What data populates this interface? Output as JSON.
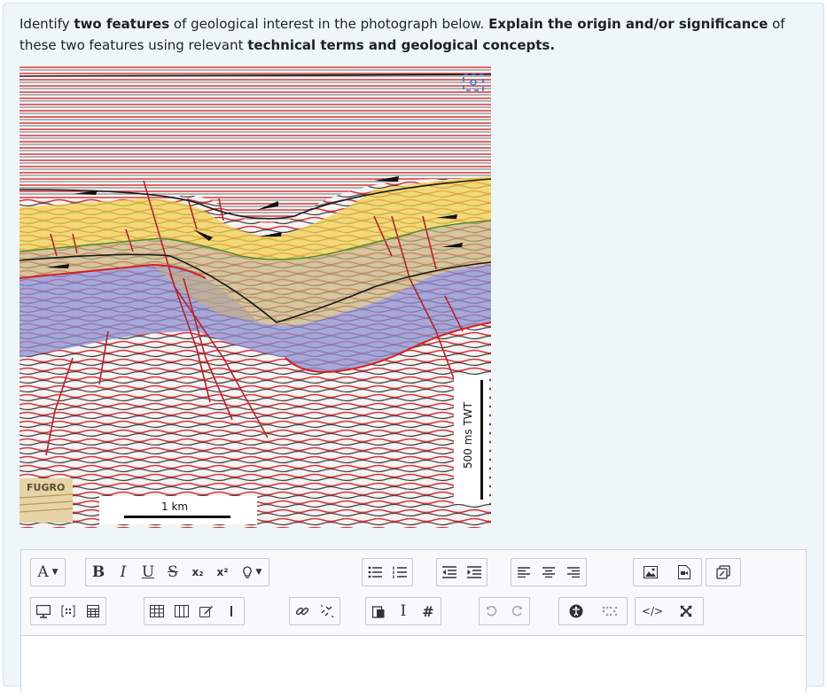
{
  "question": {
    "p1": "Identify ",
    "b1": "two features",
    "p2": " of geological interest in the photograph below. ",
    "b2": "Explain the origin and/or significance",
    "p3": " of these two features using relevant ",
    "b3": "technical terms and geological concepts."
  },
  "figure": {
    "logo": "FUGRO",
    "scale_bar": "1 km",
    "twt_label": "500 ms TWT"
  },
  "toolbar": {
    "font_color": "A",
    "bold": "B",
    "italic": "I",
    "underline": "U",
    "strike": "S",
    "subscript": "x₂",
    "superscript": "x²",
    "html": "</>",
    "char_map": "I",
    "hash": "#"
  },
  "icons": {
    "row1": [
      "font-color-icon",
      "bold-icon",
      "italic-icon",
      "underline-icon",
      "strikethrough-icon",
      "subscript-icon",
      "superscript-icon",
      "lightbulb-icon",
      "unordered-list-icon",
      "ordered-list-icon",
      "outdent-icon",
      "indent-icon",
      "align-left-icon",
      "align-center-icon",
      "align-right-icon",
      "image-icon",
      "media-icon",
      "manage-files-icon"
    ],
    "row2": [
      "screen-icon",
      "equation-icon",
      "calculator-icon",
      "table-icon",
      "columns-icon",
      "edit-icon",
      "horizontal-rule-icon",
      "link-icon",
      "unlink-icon",
      "paste-icon",
      "special-char-icon",
      "hash-icon",
      "undo-icon",
      "redo-icon",
      "accessibility-icon",
      "braille-icon",
      "html-icon",
      "fullscreen-icon"
    ]
  },
  "colors": {
    "panel_bg": "#eef6fa",
    "yellow_layer": "#f2d24f",
    "blue_layer": "#8d8fd1",
    "fault": "#b4232a"
  }
}
